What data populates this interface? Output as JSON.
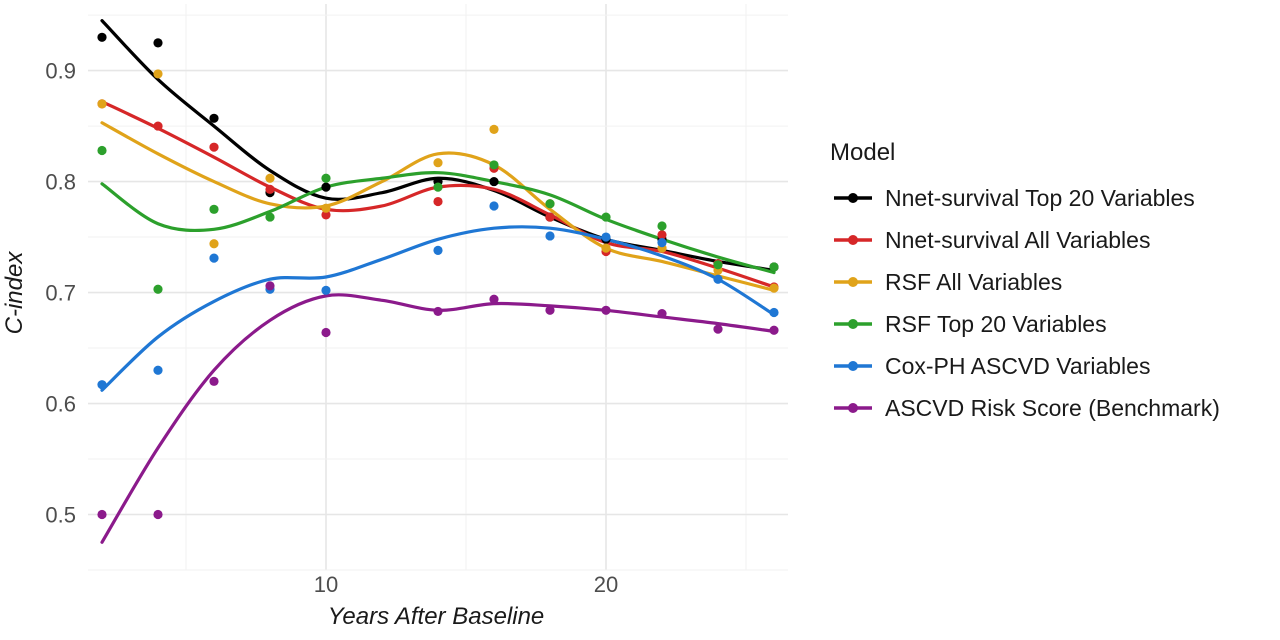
{
  "chart_data": {
    "type": "scatter",
    "xlabel": "Years After Baseline",
    "ylabel": "C-index",
    "xlim": [
      1.5,
      26.5
    ],
    "ylim": [
      0.45,
      0.96
    ],
    "x_ticks": [
      10,
      20
    ],
    "y_ticks": [
      0.5,
      0.6,
      0.7,
      0.8,
      0.9
    ],
    "grid": true,
    "legend_title": "Model",
    "legend_position": "right",
    "x": [
      2,
      4,
      6,
      8,
      10,
      14,
      16,
      18,
      20,
      22,
      24,
      26
    ],
    "series": [
      {
        "name": "Nnet-survival Top 20 Variables",
        "color": "#000000",
        "points": [
          0.93,
          0.925,
          0.857,
          0.79,
          0.795,
          0.8,
          0.8,
          0.768,
          0.748,
          0.748,
          0.726,
          0.723
        ],
        "smooth_x": [
          2,
          4,
          6,
          8,
          10,
          12,
          14,
          16,
          18,
          20,
          22,
          24,
          26
        ],
        "smooth_y": [
          0.945,
          0.892,
          0.85,
          0.81,
          0.785,
          0.79,
          0.803,
          0.792,
          0.768,
          0.748,
          0.738,
          0.728,
          0.72
        ]
      },
      {
        "name": "Nnet-survival All Variables",
        "color": "#d62728",
        "points": [
          0.87,
          0.85,
          0.831,
          0.793,
          0.77,
          0.782,
          0.812,
          0.768,
          0.737,
          0.752,
          0.726,
          0.705
        ],
        "smooth_x": [
          2,
          4,
          6,
          8,
          10,
          12,
          14,
          16,
          18,
          20,
          22,
          24,
          26
        ],
        "smooth_y": [
          0.872,
          0.848,
          0.822,
          0.795,
          0.775,
          0.778,
          0.795,
          0.793,
          0.77,
          0.745,
          0.737,
          0.722,
          0.705
        ]
      },
      {
        "name": "RSF All Variables",
        "color": "#e0a31a",
        "points": [
          0.87,
          0.897,
          0.744,
          0.803,
          0.776,
          0.817,
          0.847,
          0.78,
          0.74,
          0.74,
          0.72,
          0.704
        ],
        "smooth_x": [
          2,
          4,
          6,
          8,
          10,
          12,
          14,
          16,
          18,
          20,
          22,
          24,
          26
        ],
        "smooth_y": [
          0.853,
          0.825,
          0.8,
          0.78,
          0.778,
          0.8,
          0.825,
          0.815,
          0.775,
          0.74,
          0.728,
          0.715,
          0.702
        ]
      },
      {
        "name": "RSF Top 20 Variables",
        "color": "#2ca02c",
        "points": [
          0.828,
          0.703,
          0.775,
          0.768,
          0.803,
          0.795,
          0.815,
          0.78,
          0.768,
          0.76,
          0.725,
          0.723
        ],
        "smooth_x": [
          2,
          4,
          6,
          8,
          10,
          12,
          14,
          16,
          18,
          20,
          22,
          24,
          26
        ],
        "smooth_y": [
          0.798,
          0.762,
          0.757,
          0.773,
          0.795,
          0.803,
          0.808,
          0.8,
          0.788,
          0.766,
          0.748,
          0.732,
          0.718
        ]
      },
      {
        "name": "Cox-PH ASCVD Variables",
        "color": "#1f77d4",
        "points": [
          0.617,
          0.63,
          0.731,
          0.703,
          0.702,
          0.738,
          0.778,
          0.751,
          0.75,
          0.745,
          0.712,
          0.682
        ],
        "smooth_x": [
          2,
          4,
          6,
          8,
          10,
          12,
          14,
          16,
          18,
          20,
          22,
          24,
          26
        ],
        "smooth_y": [
          0.612,
          0.66,
          0.692,
          0.712,
          0.714,
          0.73,
          0.748,
          0.758,
          0.758,
          0.748,
          0.733,
          0.712,
          0.68
        ]
      },
      {
        "name": "ASCVD Risk Score (Benchmark)",
        "color": "#8b1a8b",
        "points": [
          0.5,
          0.5,
          0.62,
          0.706,
          0.664,
          0.683,
          0.694,
          0.684,
          0.684,
          0.681,
          0.667,
          0.666
        ],
        "smooth_x": [
          2,
          4,
          6,
          8,
          10,
          12,
          14,
          16,
          18,
          20,
          22,
          24,
          26
        ],
        "smooth_y": [
          0.475,
          0.56,
          0.63,
          0.675,
          0.697,
          0.693,
          0.684,
          0.69,
          0.688,
          0.684,
          0.678,
          0.672,
          0.665
        ]
      }
    ]
  }
}
